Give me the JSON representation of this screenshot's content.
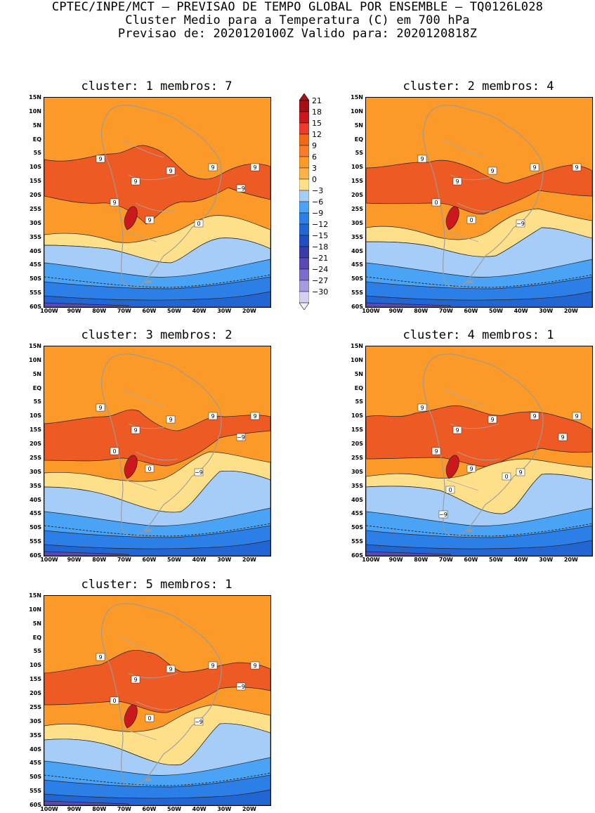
{
  "header": {
    "line1": "CPTEC/INPE/MCT – PREVISAO DE TEMPO GLOBAL POR ENSEMBLE – TQ0126L028",
    "line2": "Cluster Medio para a Temperatura (C) em 700 hPa",
    "line3": "Previsao de: 2020120100Z   Valido para: 2020120818Z"
  },
  "panels": [
    {
      "title": "cluster: 1   membros: 7"
    },
    {
      "title": "cluster: 2   membros: 4"
    },
    {
      "title": "cluster: 3   membros: 2"
    },
    {
      "title": "cluster: 4   membros: 1"
    },
    {
      "title": "cluster: 5   membros: 1"
    }
  ],
  "lat_labels": [
    "15N",
    "10N",
    "5N",
    "EQ",
    "5S",
    "10S",
    "15S",
    "20S",
    "25S",
    "30S",
    "35S",
    "40S",
    "45S",
    "50S",
    "55S",
    "60S"
  ],
  "lon_labels": [
    "100W",
    "90W",
    "80W",
    "70W",
    "60W",
    "50W",
    "40W",
    "30W",
    "20W"
  ],
  "colorbar": {
    "labels": [
      "21",
      "18",
      "15",
      "12",
      "9",
      "6",
      "3",
      "0",
      "−3",
      "−6",
      "−9",
      "−12",
      "−15",
      "−18",
      "−21",
      "−24",
      "−27",
      "−30"
    ],
    "colors": [
      "#a50f15",
      "#cb181d",
      "#ef3b2c",
      "#f16913",
      "#f97c2b",
      "#fb9a29",
      "#fdb14a",
      "#ffe08a",
      "#a6cdf7",
      "#4aa3f5",
      "#2b7fe6",
      "#2266d4",
      "#1f4fc0",
      "#3a3aa8",
      "#5a4ab8",
      "#7c6ccc",
      "#a89ae0",
      "#d6cff2"
    ]
  },
  "contour_labels": {
    "c1": [
      "9",
      "9",
      "9",
      "9",
      "9",
      "9",
      "9",
      "0",
      "−9"
    ],
    "c2": [
      "9",
      "9",
      "9",
      "9",
      "9",
      "0",
      "0",
      "−9"
    ],
    "c3": [
      "9",
      "9",
      "9",
      "9",
      "9",
      "0",
      "0",
      "−9",
      "−9"
    ],
    "c4": [
      "9",
      "9",
      "9",
      "9",
      "9",
      "9",
      "9",
      "9",
      "9",
      "0",
      "0",
      "−9"
    ],
    "c5": [
      "9",
      "9",
      "9",
      "9",
      "9",
      "0",
      "0",
      "−9",
      "−9"
    ]
  }
}
